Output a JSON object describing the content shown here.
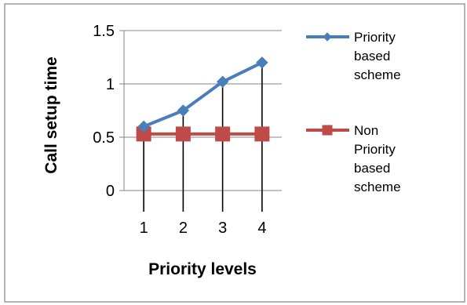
{
  "chart_data": {
    "type": "line",
    "title": "",
    "xlabel": "Priority levels",
    "ylabel": "Call setup time",
    "categories": [
      "1",
      "2",
      "3",
      "4"
    ],
    "ylim": [
      0,
      1.5
    ],
    "yticks": [
      "0",
      "0.5",
      "1",
      "1.5"
    ],
    "grid": true,
    "drop_lines": true,
    "legend_position": "right",
    "series": [
      {
        "name": "Priority based scheme",
        "legend_lines": [
          "Priority",
          "based",
          "scheme"
        ],
        "values": [
          0.6,
          0.75,
          1.02,
          1.2
        ],
        "color": "#4a7ebb",
        "marker": "diamond"
      },
      {
        "name": "Non Priority based scheme",
        "legend_lines": [
          "Non",
          "Priority",
          "based",
          "scheme"
        ],
        "values": [
          0.53,
          0.53,
          0.53,
          0.53
        ],
        "color": "#be4b48",
        "marker": "square"
      }
    ]
  }
}
